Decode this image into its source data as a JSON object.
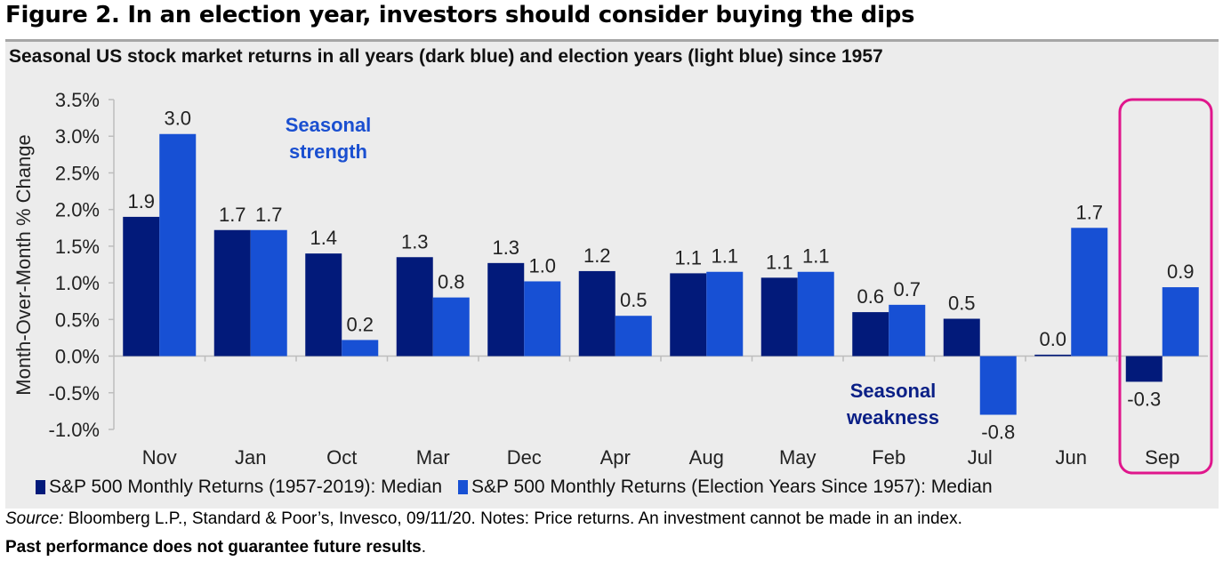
{
  "figure": {
    "title": "Figure 2. In an election year, investors should consider buying the dips",
    "subtitle": "Seasonal US stock market returns in all years (dark blue) and election years (light blue) since 1957"
  },
  "footer": {
    "source_label": "Source:",
    "source_text": " Bloomberg L.P., Standard & Poor’s, Invesco, 09/11/20. Notes: Price returns. An investment cannot be made in an index.",
    "disclaimer": "Past performance does not guarantee future results",
    "disclaimer_suffix": "."
  },
  "colors": {
    "all_years": "#021a7a",
    "election_years": "#1750d4",
    "highlight_box": "#e0168c",
    "strength_text": "#1a4fd0",
    "weakness_text": "#0a1f86",
    "panel_bg": "#ececec"
  },
  "chart_data": {
    "type": "bar",
    "title": "Seasonal US stock market returns in all years (dark blue) and election years (light blue) since 1957",
    "xlabel": "",
    "ylabel": "Month-Over-Month % Change",
    "ylim": [
      -1.0,
      3.5
    ],
    "yticks": [
      -1.0,
      -0.5,
      0.0,
      0.5,
      1.0,
      1.5,
      2.0,
      2.5,
      3.0,
      3.5
    ],
    "ytick_labels": [
      "-1.0%",
      "-0.5%",
      "0.0%",
      "0.5%",
      "1.0%",
      "1.5%",
      "2.0%",
      "2.5%",
      "3.0%",
      "3.5%"
    ],
    "grid": false,
    "legend_position": "bottom",
    "categories": [
      "Nov",
      "Jan",
      "Oct",
      "Mar",
      "Dec",
      "Apr",
      "Aug",
      "May",
      "Feb",
      "Jul",
      "Jun",
      "Sep"
    ],
    "series": [
      {
        "name": "S&P 500 Monthly Returns (1957-2019): Median",
        "values": [
          1.9,
          1.72,
          1.4,
          1.35,
          1.27,
          1.16,
          1.13,
          1.07,
          0.6,
          0.51,
          0.02,
          -0.35
        ],
        "labels": [
          "1.9",
          "1.7",
          "1.4",
          "1.3",
          "1.3",
          "1.2",
          "1.1",
          "1.1",
          "0.6",
          "0.5",
          "0.0",
          "-0.3"
        ]
      },
      {
        "name": "S&P 500 Monthly Returns (Election Years Since 1957): Median",
        "values": [
          3.03,
          1.72,
          0.22,
          0.8,
          1.02,
          0.55,
          1.15,
          1.15,
          0.7,
          -0.8,
          1.75,
          0.94
        ],
        "labels": [
          "3.0",
          "1.7",
          "0.2",
          "0.8",
          "1.0",
          "0.5",
          "1.1",
          "1.1",
          "0.7",
          "-0.8",
          "1.7",
          "0.9"
        ]
      }
    ],
    "annotations": [
      {
        "text_line1": "Seasonal",
        "text_line2": "strength",
        "near": "Jan-Oct",
        "position": "upper"
      },
      {
        "text_line1": "Seasonal",
        "text_line2": "weakness",
        "near": "Feb-Jul",
        "position": "below-zero"
      }
    ],
    "highlight": {
      "category": "Sep",
      "style": "rounded-box"
    }
  }
}
